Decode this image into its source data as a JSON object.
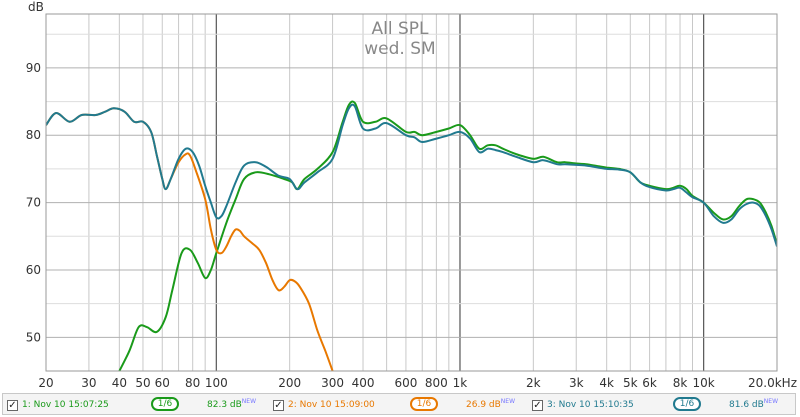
{
  "chart_data": {
    "type": "line",
    "title": "All SPL",
    "subtitle": "wed. SM",
    "xlabel": "",
    "ylabel": "dB",
    "xscale": "log",
    "xlim": [
      20,
      20000
    ],
    "ylim": [
      45,
      98
    ],
    "grid": true,
    "y_ticks": [
      50,
      60,
      70,
      80,
      90
    ],
    "x_ticks": [
      {
        "v": 20,
        "label": "20"
      },
      {
        "v": 30,
        "label": "30"
      },
      {
        "v": 40,
        "label": "40"
      },
      {
        "v": 50,
        "label": "50"
      },
      {
        "v": 60,
        "label": "60"
      },
      {
        "v": 80,
        "label": "80"
      },
      {
        "v": 100,
        "label": "100"
      },
      {
        "v": 200,
        "label": "200"
      },
      {
        "v": 300,
        "label": "300"
      },
      {
        "v": 400,
        "label": "400"
      },
      {
        "v": 600,
        "label": "600"
      },
      {
        "v": 800,
        "label": "800"
      },
      {
        "v": 1000,
        "label": "1k"
      },
      {
        "v": 2000,
        "label": "2k"
      },
      {
        "v": 3000,
        "label": "3k"
      },
      {
        "v": 4000,
        "label": "4k"
      },
      {
        "v": 5000,
        "label": "5k"
      },
      {
        "v": 6000,
        "label": "6k"
      },
      {
        "v": 8000,
        "label": "8k"
      },
      {
        "v": 10000,
        "label": "10k"
      },
      {
        "v": 20000,
        "label": "20.0kHz"
      }
    ],
    "series": [
      {
        "name": "1: Nov 10 15:07:25",
        "color": "#1a9a1a",
        "points": [
          [
            40,
            45
          ],
          [
            44,
            48
          ],
          [
            48,
            51.5
          ],
          [
            52,
            51.5
          ],
          [
            57,
            50.8
          ],
          [
            62,
            53
          ],
          [
            66,
            57
          ],
          [
            72,
            62.5
          ],
          [
            78,
            63
          ],
          [
            84,
            61
          ],
          [
            90,
            58.8
          ],
          [
            95,
            60
          ],
          [
            100,
            62.5
          ],
          [
            110,
            67
          ],
          [
            120,
            70.5
          ],
          [
            130,
            73.5
          ],
          [
            145,
            74.5
          ],
          [
            165,
            74.2
          ],
          [
            190,
            73.5
          ],
          [
            205,
            73
          ],
          [
            215,
            72
          ],
          [
            230,
            73.5
          ],
          [
            260,
            75
          ],
          [
            300,
            77.5
          ],
          [
            330,
            82
          ],
          [
            350,
            84.5
          ],
          [
            370,
            84.8
          ],
          [
            400,
            82
          ],
          [
            450,
            82
          ],
          [
            500,
            82.5
          ],
          [
            600,
            80.5
          ],
          [
            650,
            80.5
          ],
          [
            700,
            80
          ],
          [
            800,
            80.5
          ],
          [
            900,
            81
          ],
          [
            1000,
            81.5
          ],
          [
            1100,
            80
          ],
          [
            1200,
            78
          ],
          [
            1300,
            78.5
          ],
          [
            1400,
            78.5
          ],
          [
            1500,
            78
          ],
          [
            1700,
            77.2
          ],
          [
            2000,
            76.5
          ],
          [
            2200,
            76.8
          ],
          [
            2500,
            76
          ],
          [
            2700,
            76
          ],
          [
            3000,
            75.8
          ],
          [
            3300,
            75.7
          ],
          [
            3700,
            75.4
          ],
          [
            4000,
            75.2
          ],
          [
            4500,
            75
          ],
          [
            5000,
            74.5
          ],
          [
            5500,
            73
          ],
          [
            6000,
            72.5
          ],
          [
            7000,
            72
          ],
          [
            7500,
            72.2
          ],
          [
            8000,
            72.5
          ],
          [
            8500,
            72
          ],
          [
            9000,
            71
          ],
          [
            10000,
            70
          ],
          [
            11000,
            68.5
          ],
          [
            12000,
            67.5
          ],
          [
            13000,
            68
          ],
          [
            14000,
            69.5
          ],
          [
            15000,
            70.5
          ],
          [
            16000,
            70.5
          ],
          [
            17000,
            70
          ],
          [
            18000,
            68.5
          ],
          [
            19000,
            66.5
          ],
          [
            20000,
            63.8
          ]
        ]
      },
      {
        "name": "2: Nov 10 15:09:00",
        "color": "#e87800",
        "points": [
          [
            20,
            81.5
          ],
          [
            22,
            83.3
          ],
          [
            25,
            82
          ],
          [
            28,
            83
          ],
          [
            32,
            83
          ],
          [
            35,
            83.5
          ],
          [
            38,
            84
          ],
          [
            42,
            83.5
          ],
          [
            46,
            82
          ],
          [
            50,
            82
          ],
          [
            54,
            80.5
          ],
          [
            57,
            77
          ],
          [
            60,
            73.5
          ],
          [
            62,
            72
          ],
          [
            65,
            73.5
          ],
          [
            70,
            76
          ],
          [
            75,
            77.2
          ],
          [
            78,
            77
          ],
          [
            82,
            75
          ],
          [
            90,
            70.5
          ],
          [
            95,
            66
          ],
          [
            100,
            63
          ],
          [
            105,
            62.5
          ],
          [
            110,
            63.5
          ],
          [
            115,
            65
          ],
          [
            120,
            66
          ],
          [
            125,
            65.8
          ],
          [
            130,
            65
          ],
          [
            140,
            64
          ],
          [
            150,
            63
          ],
          [
            160,
            61
          ],
          [
            170,
            58.5
          ],
          [
            180,
            57
          ],
          [
            190,
            57.5
          ],
          [
            200,
            58.5
          ],
          [
            210,
            58.3
          ],
          [
            220,
            57.5
          ],
          [
            240,
            55
          ],
          [
            260,
            51
          ],
          [
            280,
            48
          ],
          [
            300,
            45
          ]
        ]
      },
      {
        "name": "3: Nov 10 15:10:35",
        "color": "#217a8f",
        "points": [
          [
            20,
            81.5
          ],
          [
            22,
            83.3
          ],
          [
            25,
            82
          ],
          [
            28,
            83
          ],
          [
            32,
            83
          ],
          [
            35,
            83.5
          ],
          [
            38,
            84
          ],
          [
            42,
            83.5
          ],
          [
            46,
            82
          ],
          [
            50,
            82
          ],
          [
            54,
            80.5
          ],
          [
            57,
            77
          ],
          [
            60,
            73.5
          ],
          [
            62,
            72
          ],
          [
            65,
            73.5
          ],
          [
            70,
            76.5
          ],
          [
            75,
            78
          ],
          [
            80,
            77.5
          ],
          [
            85,
            75.5
          ],
          [
            90,
            72.5
          ],
          [
            95,
            70
          ],
          [
            100,
            67.8
          ],
          [
            105,
            68
          ],
          [
            110,
            69.5
          ],
          [
            120,
            73
          ],
          [
            130,
            75.5
          ],
          [
            145,
            76
          ],
          [
            160,
            75.3
          ],
          [
            180,
            74
          ],
          [
            200,
            73.5
          ],
          [
            215,
            72
          ],
          [
            230,
            73
          ],
          [
            260,
            74.5
          ],
          [
            300,
            76.5
          ],
          [
            330,
            81.5
          ],
          [
            350,
            84
          ],
          [
            370,
            84.3
          ],
          [
            400,
            81
          ],
          [
            450,
            81
          ],
          [
            500,
            81.8
          ],
          [
            600,
            80
          ],
          [
            650,
            79.7
          ],
          [
            700,
            79
          ],
          [
            800,
            79.5
          ],
          [
            900,
            80
          ],
          [
            1000,
            80.5
          ],
          [
            1100,
            79.5
          ],
          [
            1200,
            77.5
          ],
          [
            1300,
            78
          ],
          [
            1400,
            77.8
          ],
          [
            1500,
            77.5
          ],
          [
            1700,
            76.8
          ],
          [
            2000,
            76
          ],
          [
            2200,
            76.3
          ],
          [
            2500,
            75.7
          ],
          [
            2700,
            75.7
          ],
          [
            3000,
            75.6
          ],
          [
            3300,
            75.5
          ],
          [
            3700,
            75.2
          ],
          [
            4000,
            75
          ],
          [
            4500,
            74.9
          ],
          [
            5000,
            74.5
          ],
          [
            5500,
            73
          ],
          [
            6000,
            72.3
          ],
          [
            7000,
            71.8
          ],
          [
            7500,
            72
          ],
          [
            8000,
            72.2
          ],
          [
            8500,
            71.5
          ],
          [
            9000,
            70.8
          ],
          [
            10000,
            70
          ],
          [
            11000,
            68
          ],
          [
            12000,
            67
          ],
          [
            13000,
            67.5
          ],
          [
            14000,
            69
          ],
          [
            15000,
            69.8
          ],
          [
            16000,
            70
          ],
          [
            17000,
            69.5
          ],
          [
            18000,
            68
          ],
          [
            19000,
            66
          ],
          [
            20000,
            63.5
          ]
        ]
      }
    ]
  },
  "legend": {
    "items": [
      {
        "checkbox": "✓",
        "label": "1: Nov 10 15:07:25",
        "smoothing": "1/6",
        "level": "82.3 dB",
        "badge": "NEW",
        "color": "#1a9a1a"
      },
      {
        "checkbox": "✓",
        "label": "2: Nov 10 15:09:00",
        "smoothing": "1/6",
        "level": "26.9 dB",
        "badge": "NEW",
        "color": "#e87800"
      },
      {
        "checkbox": "✓",
        "label": "3: Nov 10 15:10:35",
        "smoothing": "1/6",
        "level": "81.6 dB",
        "badge": "NEW",
        "color": "#217a8f"
      }
    ]
  }
}
